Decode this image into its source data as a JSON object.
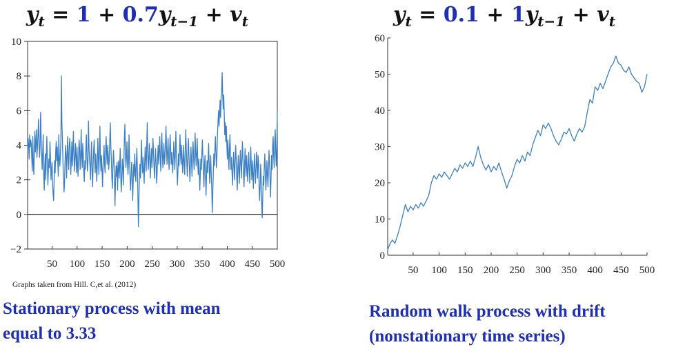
{
  "formulas": {
    "left": {
      "lhs": "y",
      "lhs_sub": "t",
      "const": "1",
      "coef": "0.7",
      "lag": "y",
      "lag_sub": "t−1",
      "err": "v",
      "err_sub": "t"
    },
    "right": {
      "lhs": "y",
      "lhs_sub": "t",
      "const": "0.1",
      "coef": "1",
      "lag": "y",
      "lag_sub": "t−1",
      "err": "v",
      "err_sub": "t"
    }
  },
  "credit": "Graphs taken from Hill. C,et al. (2012)",
  "captions": {
    "left": [
      "Stationary process with mean",
      "equal to 3.33"
    ],
    "right": [
      "Random walk process with drift",
      "(nonstationary time series)"
    ]
  },
  "colors": {
    "series": "#3b7fc4",
    "caption": "#1f2fb5"
  },
  "chart_data": [
    {
      "type": "line",
      "title": "",
      "xlabel": "",
      "ylabel": "",
      "xlim": [
        1,
        500
      ],
      "ylim": [
        -2,
        10
      ],
      "xticks": [
        50,
        100,
        150,
        200,
        250,
        300,
        350,
        400,
        450,
        500
      ],
      "yticks": [
        -2,
        0,
        2,
        4,
        6,
        8,
        10
      ],
      "reference_line": 0,
      "series": [
        {
          "values": [
            3.6,
            4.4,
            4.0,
            3.2,
            4.6,
            3.9,
            4.3,
            4.1,
            3.3,
            2.5,
            4.5,
            3.0,
            2.3,
            3.8,
            4.8,
            3.6,
            4.2,
            4.9,
            3.3,
            3.9,
            4.6,
            5.5,
            4.1,
            3.3,
            4.0,
            5.9,
            4.5,
            3.5,
            2.6,
            3.6,
            4.6,
            2.3,
            1.4,
            2.8,
            3.5,
            2.0,
            3.4,
            4.5,
            3.1,
            1.7,
            2.6,
            3.2,
            2.7,
            4.2,
            3.3,
            2.0,
            2.6,
            3.0,
            1.8,
            1.2,
            0.8,
            2.0,
            3.1,
            2.4,
            3.6,
            4.2,
            3.1,
            3.9,
            3.0,
            2.2,
            4.6,
            3.3,
            2.8,
            3.4,
            4.3,
            8.0,
            5.2,
            4.3,
            3.0,
            2.1,
            1.3,
            1.8,
            3.1,
            4.0,
            3.4,
            2.1,
            3.5,
            4.5,
            3.2,
            2.6,
            3.9,
            4.4,
            3.6,
            2.3,
            3.1,
            4.2,
            2.8,
            3.6,
            4.8,
            3.5,
            2.5,
            3.3,
            4.1,
            3.2,
            2.4,
            3.9,
            2.9,
            2.2,
            3.4,
            4.3,
            3.8,
            2.6,
            3.3,
            4.9,
            3.4,
            2.7,
            4.1,
            3.5,
            2.4,
            1.9,
            3.1,
            2.6,
            3.8,
            4.6,
            3.3,
            2.5,
            3.0,
            5.4,
            4.0,
            3.1,
            2.8,
            2.0,
            3.4,
            4.2,
            2.5,
            1.6,
            2.9,
            3.7,
            4.3,
            3.1,
            2.4,
            3.5,
            2.8,
            1.9,
            2.9,
            4.4,
            3.3,
            2.3,
            3.6,
            5.1,
            3.2,
            2.5,
            3.4,
            2.7,
            1.6,
            2.6,
            3.3,
            4.0,
            2.9,
            2.4,
            3.7,
            4.5,
            3.5,
            2.9,
            4.0,
            3.4,
            2.6,
            3.2,
            4.3,
            5.3,
            4.0,
            3.1,
            2.1,
            1.5,
            2.8,
            3.7,
            3.1,
            2.0,
            0.5,
            1.9,
            2.8,
            2.2,
            3.0,
            1.4,
            2.6,
            3.1,
            2.1,
            2.7,
            3.8,
            2.3,
            1.3,
            2.0,
            3.2,
            2.8,
            1.7,
            2.9,
            4.4,
            5.2,
            3.6,
            2.7,
            3.3,
            4.2,
            3.0,
            2.3,
            3.1,
            4.6,
            3.1,
            2.1,
            1.4,
            2.2,
            3.0,
            2.4,
            0.8,
            1.9,
            2.9,
            2.2,
            3.5,
            2.6,
            1.9,
            2.9,
            3.8,
            2.7,
            1.2,
            -0.7,
            0.9,
            2.3,
            2.9,
            2.1,
            3.1,
            4.3,
            3.0,
            2.4,
            3.3,
            2.6,
            1.8,
            2.9,
            3.9,
            3.2,
            2.5,
            4.0,
            5.3,
            3.4,
            2.6,
            3.3,
            4.1,
            3.0,
            2.1,
            3.2,
            3.8,
            2.7,
            3.5,
            4.4,
            3.6,
            2.8,
            2.1,
            3.0,
            3.8,
            2.9,
            1.8,
            2.4,
            3.3,
            4.0,
            2.9,
            3.6,
            4.5,
            3.3,
            2.5,
            3.8,
            4.7,
            3.5,
            2.7,
            3.4,
            4.1,
            2.9,
            3.3,
            4.1,
            5.1,
            3.8,
            2.9,
            3.6,
            4.4,
            3.3,
            2.6,
            3.7,
            4.6,
            3.7,
            2.9,
            3.6,
            3.0,
            2.4,
            3.3,
            4.2,
            3.4,
            2.6,
            3.5,
            4.8,
            3.6,
            2.7,
            1.7,
            2.5,
            3.5,
            2.8,
            3.7,
            4.6,
            3.4,
            2.9,
            4.0,
            3.3,
            2.4,
            3.1,
            4.0,
            2.9,
            2.3,
            3.6,
            4.9,
            3.8,
            3.0,
            2.2,
            3.3,
            4.4,
            3.5,
            2.7,
            1.9,
            2.9,
            3.9,
            3.1,
            2.2,
            3.4,
            4.2,
            3.4,
            2.6,
            3.3,
            4.7,
            3.6,
            2.8,
            3.5,
            4.4,
            3.1,
            2.3,
            3.2,
            2.5,
            1.4,
            2.3,
            3.2,
            2.6,
            3.5,
            4.3,
            3.3,
            2.4,
            1.6,
            2.9,
            3.4,
            2.2,
            1.1,
            2.3,
            3.1,
            2.4,
            3.2,
            4.1,
            2.9,
            1.8,
            2.6,
            3.4,
            2.3,
            1.5,
            0.1,
            1.2,
            2.5,
            3.5,
            2.8,
            3.7,
            4.5,
            3.6,
            2.7,
            3.5,
            4.6,
            5.3,
            6.0,
            5.1,
            5.8,
            6.6,
            5.6,
            6.8,
            7.2,
            8.2,
            6.9,
            6.1,
            6.9,
            5.8,
            4.6,
            5.3,
            4.2,
            5.1,
            4.0,
            3.2,
            4.3,
            3.5,
            2.6,
            3.8,
            4.6,
            3.4,
            2.6,
            3.3,
            2.4,
            1.7,
            2.8,
            3.6,
            2.7,
            2.0,
            3.2,
            4.0,
            3.1,
            2.2,
            1.4,
            2.6,
            3.4,
            2.5,
            1.8,
            3.0,
            3.7,
            2.8,
            2.1,
            3.3,
            4.2,
            3.2,
            2.3,
            1.6,
            2.7,
            3.8,
            2.9,
            2.2,
            3.4,
            2.7,
            1.9,
            2.8,
            3.6,
            2.6,
            1.8,
            2.9,
            3.9,
            2.8,
            2.0,
            3.1,
            2.4,
            1.5,
            2.6,
            3.5,
            2.6,
            1.8,
            2.7,
            3.6,
            2.8,
            2.1,
            3.4,
            3.0,
            1.6,
            0.8,
            1.7,
            2.9,
            2.1,
            0.6,
            -0.2,
            1.0,
            2.2,
            1.7,
            2.8,
            3.5,
            2.4,
            1.4,
            2.2,
            3.1,
            2.3,
            1.6,
            2.6,
            3.7,
            3.0,
            2.1,
            1.0,
            2.2,
            3.4,
            2.6,
            3.9,
            4.5,
            3.4,
            2.7,
            4.2,
            4.9,
            3.6,
            2.8,
            3.9,
            6.1
          ]
        }
      ]
    },
    {
      "type": "line",
      "title": "",
      "xlabel": "",
      "ylabel": "",
      "xlim": [
        1,
        500
      ],
      "ylim": [
        0,
        60
      ],
      "xticks": [
        50,
        100,
        150,
        200,
        250,
        300,
        350,
        400,
        450,
        500
      ],
      "yticks": [
        0,
        10,
        20,
        30,
        40,
        50,
        60
      ],
      "series": [
        {
          "points": [
            [
              1,
              1.5
            ],
            [
              5,
              3.0
            ],
            [
              10,
              4.2
            ],
            [
              15,
              3.3
            ],
            [
              20,
              5.5
            ],
            [
              25,
              8.0
            ],
            [
              30,
              11.0
            ],
            [
              35,
              14.0
            ],
            [
              40,
              12.0
            ],
            [
              45,
              13.5
            ],
            [
              50,
              12.5
            ],
            [
              55,
              14.0
            ],
            [
              60,
              13.0
            ],
            [
              65,
              14.5
            ],
            [
              70,
              13.5
            ],
            [
              75,
              15.0
            ],
            [
              80,
              16.5
            ],
            [
              85,
              20.0
            ],
            [
              90,
              22.0
            ],
            [
              95,
              21.0
            ],
            [
              100,
              22.5
            ],
            [
              105,
              21.5
            ],
            [
              110,
              23.0
            ],
            [
              115,
              22.0
            ],
            [
              120,
              21.0
            ],
            [
              125,
              22.5
            ],
            [
              130,
              24.0
            ],
            [
              135,
              23.0
            ],
            [
              140,
              25.0
            ],
            [
              145,
              24.0
            ],
            [
              150,
              25.5
            ],
            [
              155,
              24.5
            ],
            [
              160,
              26.0
            ],
            [
              165,
              24.5
            ],
            [
              170,
              27.0
            ],
            [
              175,
              30.0
            ],
            [
              180,
              27.0
            ],
            [
              185,
              25.0
            ],
            [
              190,
              23.5
            ],
            [
              195,
              25.0
            ],
            [
              200,
              23.0
            ],
            [
              205,
              24.5
            ],
            [
              210,
              23.5
            ],
            [
              215,
              25.5
            ],
            [
              220,
              23.0
            ],
            [
              225,
              21.0
            ],
            [
              230,
              18.5
            ],
            [
              235,
              20.5
            ],
            [
              240,
              22.0
            ],
            [
              245,
              24.5
            ],
            [
              250,
              26.5
            ],
            [
              255,
              25.5
            ],
            [
              260,
              27.5
            ],
            [
              265,
              26.0
            ],
            [
              270,
              28.5
            ],
            [
              275,
              27.5
            ],
            [
              280,
              30.5
            ],
            [
              285,
              32.5
            ],
            [
              290,
              34.5
            ],
            [
              295,
              33.0
            ],
            [
              300,
              36.0
            ],
            [
              305,
              35.0
            ],
            [
              310,
              36.5
            ],
            [
              315,
              35.0
            ],
            [
              320,
              33.0
            ],
            [
              325,
              31.5
            ],
            [
              330,
              30.5
            ],
            [
              335,
              32.0
            ],
            [
              340,
              34.0
            ],
            [
              345,
              33.5
            ],
            [
              350,
              35.0
            ],
            [
              355,
              33.0
            ],
            [
              360,
              31.5
            ],
            [
              365,
              33.5
            ],
            [
              370,
              35.0
            ],
            [
              375,
              34.0
            ],
            [
              380,
              35.5
            ],
            [
              385,
              39.5
            ],
            [
              390,
              43.0
            ],
            [
              395,
              42.0
            ],
            [
              400,
              46.5
            ],
            [
              405,
              45.5
            ],
            [
              410,
              47.5
            ],
            [
              415,
              46.0
            ],
            [
              420,
              48.0
            ],
            [
              425,
              50.0
            ],
            [
              430,
              52.0
            ],
            [
              435,
              53.0
            ],
            [
              440,
              55.0
            ],
            [
              445,
              53.0
            ],
            [
              450,
              52.5
            ],
            [
              455,
              51.0
            ],
            [
              460,
              50.5
            ],
            [
              465,
              52.0
            ],
            [
              470,
              50.0
            ],
            [
              475,
              49.0
            ],
            [
              480,
              48.0
            ],
            [
              485,
              47.5
            ],
            [
              490,
              45.0
            ],
            [
              495,
              46.5
            ],
            [
              500,
              50.0
            ]
          ]
        }
      ]
    }
  ]
}
